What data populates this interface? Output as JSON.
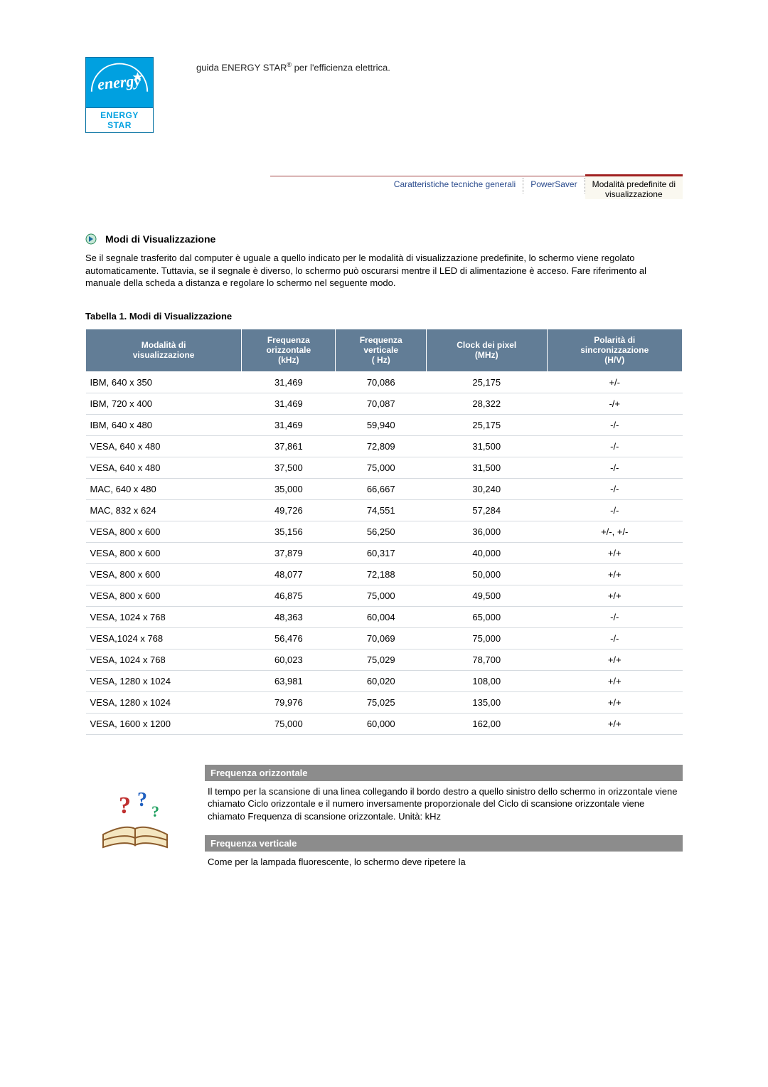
{
  "top": {
    "logo_script": "energy",
    "logo_bar": "ENERGY STAR",
    "intro_pre": "guida ENERGY STAR",
    "intro_reg": "®",
    "intro_post": " per l'efficienza elettrica."
  },
  "tabs": {
    "general": "Caratteristiche tecniche generali",
    "powersaver": "PowerSaver",
    "active_line1": "Modalità predefinite di",
    "active_line2": "visualizzazione"
  },
  "section": {
    "heading": "Modi di Visualizzazione",
    "body": "Se il segnale trasferito dal computer è uguale a quello indicato per le modalità di visualizzazione predefinite, lo schermo viene regolato automaticamente. Tuttavia, se il segnale è diverso, lo schermo può oscurarsi mentre il LED di alimentazione è acceso. Fare riferimento al manuale della scheda a distanza e regolare lo schermo nel seguente modo."
  },
  "table": {
    "title": "Tabella 1. Modi di Visualizzazione",
    "columns": {
      "c0a": "Modalità di",
      "c0b": "visualizzazione",
      "c1a": "Frequenza",
      "c1b": "orizzontale",
      "c1c": "(kHz)",
      "c2a": "Frequenza",
      "c2b": "verticale",
      "c2c": "( Hz)",
      "c3a": "Clock dei pixel",
      "c3b": "(MHz)",
      "c4a": "Polarità di",
      "c4b": "sincronizzazione",
      "c4c": "(H/V)"
    },
    "rows": [
      [
        "IBM, 640 x 350",
        "31,469",
        "70,086",
        "25,175",
        "+/-"
      ],
      [
        "IBM, 720 x 400",
        "31,469",
        "70,087",
        "28,322",
        "-/+"
      ],
      [
        "IBM, 640 x 480",
        "31,469",
        "59,940",
        "25,175",
        "-/-"
      ],
      [
        "VESA, 640 x 480",
        "37,861",
        "72,809",
        "31,500",
        "-/-"
      ],
      [
        "VESA, 640 x 480",
        "37,500",
        "75,000",
        "31,500",
        "-/-"
      ],
      [
        "MAC, 640 x 480",
        "35,000",
        "66,667",
        "30,240",
        "-/-"
      ],
      [
        "MAC, 832 x 624",
        "49,726",
        "74,551",
        "57,284",
        "-/-"
      ],
      [
        "VESA, 800 x 600",
        "35,156",
        "56,250",
        "36,000",
        "+/-, +/-"
      ],
      [
        "VESA, 800 x 600",
        "37,879",
        "60,317",
        "40,000",
        "+/+"
      ],
      [
        "VESA, 800 x 600",
        "48,077",
        "72,188",
        "50,000",
        "+/+"
      ],
      [
        "VESA, 800 x 600",
        "46,875",
        "75,000",
        "49,500",
        "+/+"
      ],
      [
        "VESA, 1024 x 768",
        "48,363",
        "60,004",
        "65,000",
        "-/-"
      ],
      [
        "VESA,1024 x 768",
        "56,476",
        "70,069",
        "75,000",
        "-/-"
      ],
      [
        "VESA, 1024 x 768",
        "60,023",
        "75,029",
        "78,700",
        "+/+"
      ],
      [
        "VESA, 1280 x 1024",
        "63,981",
        "60,020",
        "108,00",
        "+/+"
      ],
      [
        "VESA, 1280 x 1024",
        "79,976",
        "75,025",
        "135,00",
        "+/+"
      ],
      [
        "VESA, 1600 x 1200",
        "75,000",
        "60,000",
        "162,00",
        "+/+"
      ]
    ],
    "header_bg": "#627d96",
    "header_fg": "#ffffff",
    "row_border": "#d6dbe0"
  },
  "info": {
    "h_title": "Frequenza orizzontale",
    "h_text": "Il tempo per la scansione di una linea collegando il bordo destro a quello sinistro dello schermo in orizzontale viene chiamato Ciclo orizzontale e il numero inversamente proporzionale del Ciclo di scansione orizzontale viene chiamato Frequenza di scansione orizzontale. Unità: kHz",
    "v_title": "Frequenza verticale",
    "v_text": "Come per la lampada fluorescente, lo schermo deve ripetere la"
  }
}
